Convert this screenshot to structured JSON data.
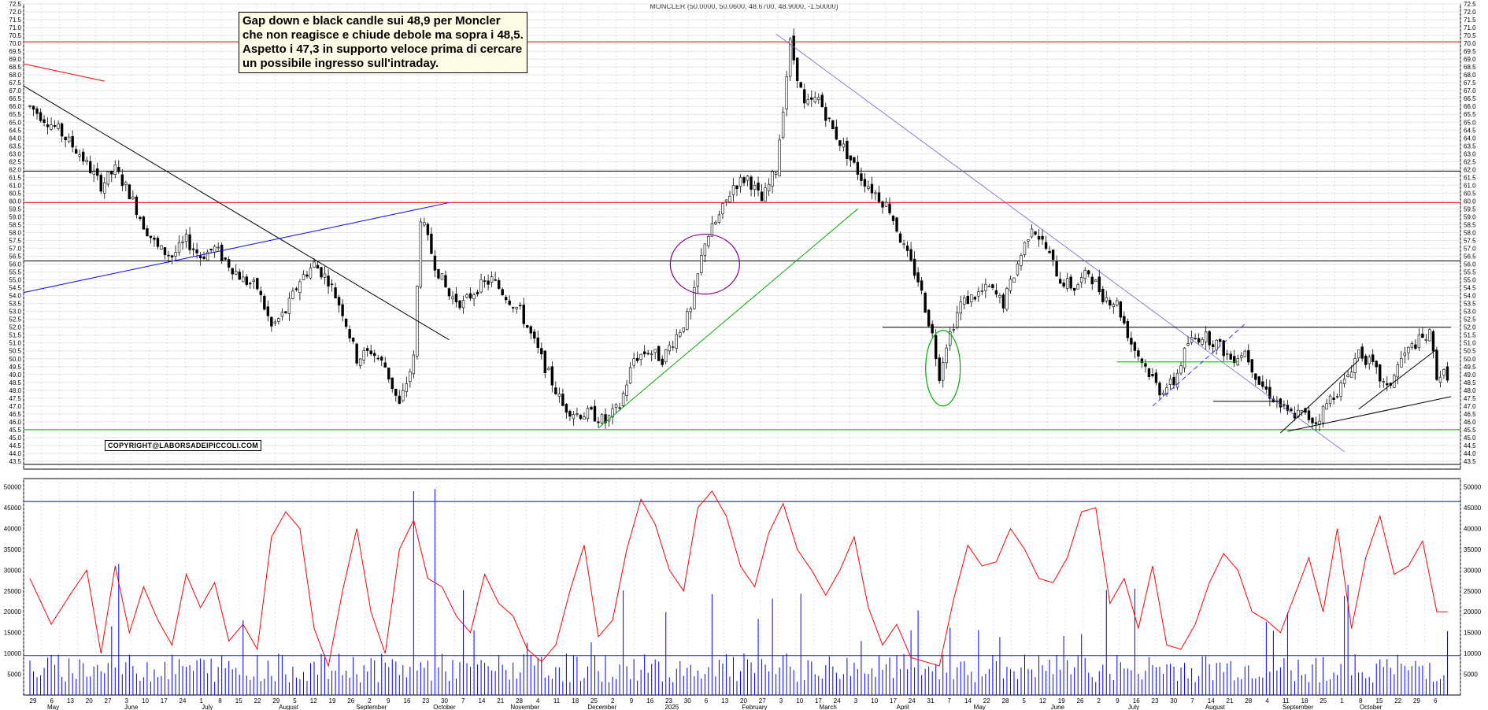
{
  "chart_data": [
    {
      "type": "candlestick",
      "title": "MONCLER (50.0000, 50.0600, 48.6700, 48.9000, -1.50000)",
      "ylim": [
        43.0,
        72.5
      ],
      "yticks": [
        43.5,
        44.0,
        44.5,
        45.0,
        45.5,
        46.0,
        46.5,
        47.0,
        47.5,
        48.0,
        48.5,
        49.0,
        49.5,
        50.0,
        50.5,
        51.0,
        51.5,
        52.0,
        52.5,
        53.0,
        53.5,
        54.0,
        54.5,
        55.0,
        55.5,
        56.0,
        56.5,
        57.0,
        57.5,
        58.0,
        58.5,
        59.0,
        59.5,
        60.0,
        60.5,
        61.0,
        61.5,
        62.0,
        62.5,
        63.0,
        63.5,
        64.0,
        64.5,
        65.0,
        65.5,
        66.0,
        66.5,
        67.0,
        67.5,
        68.0,
        68.5,
        69.0,
        69.5,
        70.0,
        70.5,
        71.0,
        71.5,
        72.0,
        72.5
      ],
      "grid": true,
      "horizontal_levels": [
        {
          "value": 70.1,
          "color": "#ff0000"
        },
        {
          "value": 61.9,
          "color": "#000000"
        },
        {
          "value": 59.9,
          "color": "#ff0000"
        },
        {
          "value": 56.2,
          "color": "#000000"
        },
        {
          "value": 45.5,
          "color": "#00aa00"
        },
        {
          "value": 43.3,
          "color": "#000000"
        }
      ],
      "price_path": [
        [
          0,
          66.0
        ],
        [
          8,
          64.5
        ],
        [
          14,
          63.0
        ],
        [
          20,
          61.0
        ],
        [
          24,
          62.0
        ],
        [
          28,
          60.5
        ],
        [
          32,
          58.5
        ],
        [
          36,
          57.0
        ],
        [
          40,
          56.5
        ],
        [
          44,
          57.5
        ],
        [
          48,
          56.5
        ],
        [
          52,
          57.0
        ],
        [
          56,
          56.0
        ],
        [
          60,
          55.0
        ],
        [
          64,
          54.5
        ],
        [
          68,
          52.0
        ],
        [
          72,
          53.0
        ],
        [
          76,
          55.0
        ],
        [
          80,
          56.0
        ],
        [
          84,
          55.0
        ],
        [
          88,
          53.0
        ],
        [
          92,
          50.0
        ],
        [
          96,
          50.5
        ],
        [
          100,
          49.5
        ],
        [
          104,
          47.0
        ],
        [
          108,
          50.0
        ],
        [
          110,
          59.0
        ],
        [
          114,
          56.0
        ],
        [
          118,
          54.0
        ],
        [
          122,
          53.5
        ],
        [
          126,
          54.5
        ],
        [
          130,
          55.0
        ],
        [
          134,
          54.0
        ],
        [
          138,
          53.0
        ],
        [
          142,
          51.0
        ],
        [
          146,
          49.0
        ],
        [
          150,
          47.0
        ],
        [
          154,
          46.5
        ],
        [
          158,
          46.5
        ],
        [
          162,
          46.0
        ],
        [
          166,
          47.0
        ],
        [
          170,
          50.0
        ],
        [
          174,
          50.5
        ],
        [
          178,
          50.0
        ],
        [
          182,
          51.5
        ],
        [
          186,
          53.0
        ],
        [
          190,
          57.5
        ],
        [
          194,
          59.0
        ],
        [
          198,
          61.0
        ],
        [
          202,
          61.5
        ],
        [
          206,
          60.0
        ],
        [
          210,
          62.0
        ],
        [
          214,
          70.0
        ],
        [
          218,
          66.0
        ],
        [
          222,
          66.5
        ],
        [
          226,
          64.5
        ],
        [
          230,
          63.0
        ],
        [
          234,
          61.5
        ],
        [
          238,
          60.5
        ],
        [
          242,
          59.5
        ],
        [
          246,
          57.0
        ],
        [
          250,
          55.0
        ],
        [
          254,
          51.5
        ],
        [
          256,
          49.0
        ],
        [
          258,
          51.0
        ],
        [
          262,
          53.5
        ],
        [
          266,
          54.0
        ],
        [
          270,
          54.5
        ],
        [
          274,
          53.5
        ],
        [
          278,
          56.0
        ],
        [
          282,
          58.5
        ],
        [
          286,
          57.0
        ],
        [
          290,
          55.0
        ],
        [
          294,
          54.5
        ],
        [
          298,
          55.5
        ],
        [
          302,
          54.0
        ],
        [
          306,
          53.5
        ],
        [
          310,
          51.0
        ],
        [
          314,
          49.5
        ],
        [
          318,
          48.0
        ],
        [
          322,
          48.5
        ],
        [
          326,
          51.0
        ],
        [
          330,
          51.5
        ],
        [
          334,
          51.0
        ],
        [
          338,
          50.0
        ],
        [
          342,
          50.5
        ],
        [
          346,
          48.5
        ],
        [
          350,
          47.5
        ],
        [
          354,
          46.5
        ],
        [
          358,
          46.5
        ],
        [
          362,
          46.0
        ],
        [
          366,
          47.5
        ],
        [
          370,
          48.5
        ],
        [
          374,
          50.5
        ],
        [
          378,
          49.5
        ],
        [
          382,
          48.0
        ],
        [
          386,
          50.0
        ],
        [
          390,
          51.0
        ],
        [
          394,
          51.5
        ],
        [
          396,
          49.0
        ]
      ],
      "pattern_annotations": [
        "downtrend-line",
        "support-trend-line",
        "resistance-ellipse",
        "gap-ellipse"
      ]
    },
    {
      "type": "bar+line",
      "title": "Volume",
      "ylim": [
        0,
        52000
      ],
      "yticks": [
        5000,
        10000,
        15000,
        20000,
        25000,
        30000,
        35000,
        40000,
        45000,
        50000
      ],
      "horizontal_levels": [
        46500,
        9500
      ],
      "volume_line": [
        [
          0,
          28000
        ],
        [
          6,
          17000
        ],
        [
          12,
          25000
        ],
        [
          16,
          30000
        ],
        [
          20,
          10000
        ],
        [
          24,
          31000
        ],
        [
          28,
          15000
        ],
        [
          32,
          26000
        ],
        [
          36,
          18000
        ],
        [
          40,
          12000
        ],
        [
          44,
          29000
        ],
        [
          48,
          21000
        ],
        [
          52,
          27000
        ],
        [
          56,
          13000
        ],
        [
          60,
          17000
        ],
        [
          64,
          11000
        ],
        [
          68,
          38000
        ],
        [
          72,
          44000
        ],
        [
          76,
          40000
        ],
        [
          80,
          16000
        ],
        [
          84,
          7000
        ],
        [
          88,
          25000
        ],
        [
          92,
          40000
        ],
        [
          96,
          20000
        ],
        [
          100,
          10000
        ],
        [
          104,
          35000
        ],
        [
          108,
          42000
        ],
        [
          112,
          28000
        ],
        [
          116,
          26000
        ],
        [
          120,
          19000
        ],
        [
          124,
          15000
        ],
        [
          128,
          29000
        ],
        [
          132,
          22000
        ],
        [
          136,
          19000
        ],
        [
          140,
          11000
        ],
        [
          144,
          8000
        ],
        [
          148,
          12000
        ],
        [
          152,
          25000
        ],
        [
          156,
          36000
        ],
        [
          160,
          14000
        ],
        [
          164,
          18000
        ],
        [
          168,
          35000
        ],
        [
          172,
          47000
        ],
        [
          176,
          41000
        ],
        [
          180,
          30000
        ],
        [
          184,
          25000
        ],
        [
          188,
          45000
        ],
        [
          192,
          49000
        ],
        [
          196,
          43000
        ],
        [
          200,
          31000
        ],
        [
          204,
          26000
        ],
        [
          208,
          39000
        ],
        [
          212,
          46000
        ],
        [
          216,
          35000
        ],
        [
          220,
          30000
        ],
        [
          224,
          24000
        ],
        [
          228,
          30000
        ],
        [
          232,
          38000
        ],
        [
          236,
          21000
        ],
        [
          240,
          12000
        ],
        [
          244,
          17000
        ],
        [
          248,
          9000
        ],
        [
          252,
          8000
        ],
        [
          256,
          7000
        ],
        [
          260,
          23000
        ],
        [
          264,
          36000
        ],
        [
          268,
          31000
        ],
        [
          272,
          32000
        ],
        [
          276,
          40000
        ],
        [
          280,
          35000
        ],
        [
          284,
          28000
        ],
        [
          288,
          27000
        ],
        [
          292,
          33000
        ],
        [
          296,
          44000
        ],
        [
          300,
          45000
        ],
        [
          304,
          22000
        ],
        [
          308,
          28000
        ],
        [
          312,
          16000
        ],
        [
          316,
          31000
        ],
        [
          320,
          12000
        ],
        [
          324,
          11000
        ],
        [
          328,
          17000
        ],
        [
          332,
          27000
        ],
        [
          336,
          34000
        ],
        [
          340,
          30000
        ],
        [
          344,
          20000
        ],
        [
          348,
          18000
        ],
        [
          352,
          15000
        ],
        [
          356,
          24000
        ],
        [
          360,
          33000
        ],
        [
          364,
          20000
        ],
        [
          368,
          40000
        ],
        [
          372,
          16000
        ],
        [
          376,
          33000
        ],
        [
          380,
          43000
        ],
        [
          384,
          29000
        ],
        [
          388,
          31000
        ],
        [
          392,
          37000
        ],
        [
          396,
          20000
        ]
      ]
    }
  ],
  "x_axis": {
    "tick_labels": [
      "29",
      "6",
      "13",
      "20",
      "27",
      "3",
      "10",
      "17",
      "24",
      "1",
      "8",
      "15",
      "22",
      "29",
      "5",
      "12",
      "19",
      "26",
      "2",
      "9",
      "16",
      "23",
      "30",
      "7",
      "14",
      "21",
      "28",
      "4",
      "11",
      "18",
      "25",
      "2",
      "9",
      "16",
      "23",
      "30",
      "6",
      "13",
      "20",
      "27",
      "3",
      "10",
      "17",
      "24",
      "3",
      "10",
      "17",
      "24",
      "31",
      "7",
      "14",
      "22",
      "28",
      "5",
      "12",
      "19",
      "26",
      "2",
      "9",
      "16",
      "23",
      "30",
      "7",
      "14",
      "21",
      "28",
      "4",
      "11",
      "18",
      "25",
      "1",
      "8",
      "15",
      "22",
      "29",
      "6"
    ],
    "month_labels": [
      "May",
      "June",
      "July",
      "August",
      "September",
      "October",
      "November",
      "December",
      "2025",
      "February",
      "March",
      "April",
      "May",
      "June",
      "July",
      "August",
      "September",
      "October"
    ]
  },
  "annotation": {
    "text": "Gap down e black candle sui 48,9 per Moncler che non reagisce e chiude debole  ma sopra i 48,5. Aspetto i 47,3 in supporto veloce prima di cercare un possibile ingresso sull'intraday."
  },
  "copyright": "COPYRIGHT@LABORSADEIPICCOLI.COM",
  "colors": {
    "price_candle": "#000000",
    "volume_bar": "#0000ff",
    "volume_average": "#ff0000",
    "support_line": "#00aa00",
    "trendline_blue": "#0000ff",
    "ellipse_purple": "#800080"
  }
}
